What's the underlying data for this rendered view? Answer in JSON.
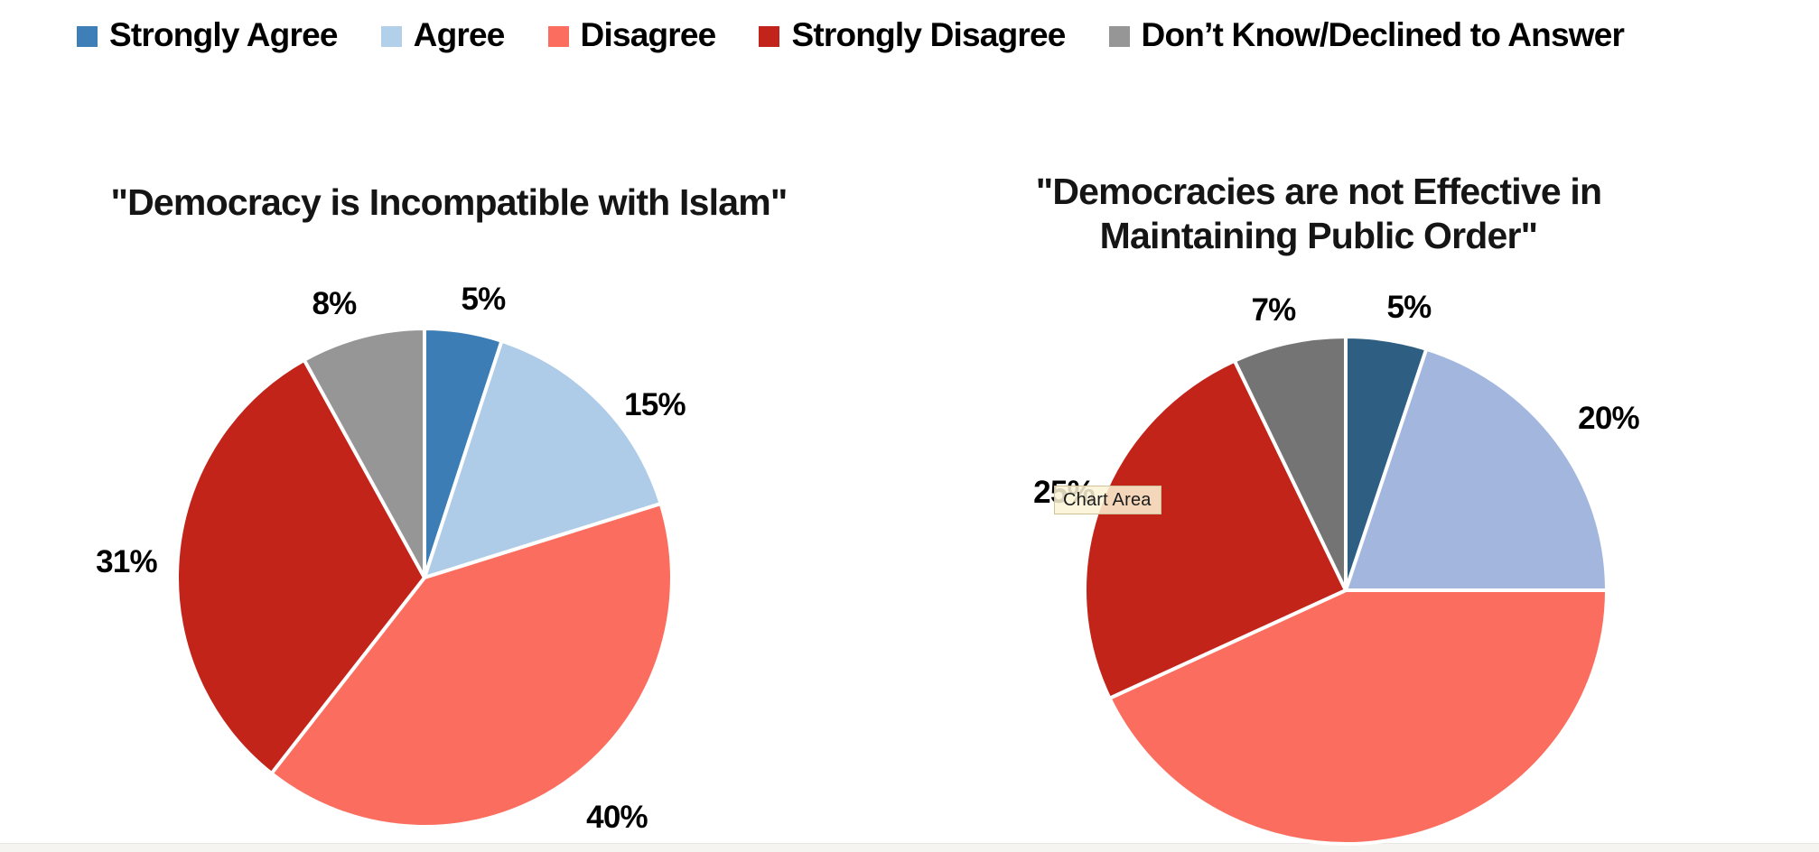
{
  "legend": {
    "items": [
      {
        "label": "Strongly Agree",
        "color": "#3f7fb8"
      },
      {
        "label": "Agree",
        "color": "#b3d0ea"
      },
      {
        "label": "Disagree",
        "color": "#fb6e5f"
      },
      {
        "label": "Strongly Disagree",
        "color": "#c2231a"
      },
      {
        "label": "Don’t Know/Declined to Answer",
        "color": "#969696"
      }
    ]
  },
  "chart_data": [
    {
      "type": "pie",
      "title": "\"Democracy is Incompatible with Islam\"",
      "categories": [
        "Strongly Agree",
        "Agree",
        "Disagree",
        "Strongly Disagree",
        "Don’t Know/Declined to Answer"
      ],
      "values": [
        5,
        15,
        40,
        31,
        8
      ],
      "labels": [
        "5%",
        "15%",
        "40%",
        "31%",
        "8%"
      ],
      "colors": [
        "#3c7db5",
        "#aecbe8",
        "#fb6e5f",
        "#c2241a",
        "#969696"
      ],
      "legend_position": "top",
      "start_angle_deg": 0,
      "direction": "clockwise"
    },
    {
      "type": "pie",
      "title": "\"Democracies are not Effective in Maintaining Public Order\"",
      "categories": [
        "Strongly Agree",
        "Agree",
        "Disagree",
        "Strongly Disagree",
        "Don’t Know/Declined to Answer"
      ],
      "values": [
        5,
        20,
        43,
        25,
        7
      ],
      "labels": [
        "5%",
        "20%",
        "",
        "25%",
        "7%"
      ],
      "colors": [
        "#2e5f82",
        "#a3b7de",
        "#fb6e5f",
        "#c2241a",
        "#747474"
      ],
      "legend_position": "top",
      "start_angle_deg": 0,
      "direction": "clockwise",
      "note_unlabeled_slice": "Disagree slice (43%) has no visible data label"
    }
  ],
  "display": {
    "right_title_lines": [
      "\"Democracies are not Effective in",
      "Maintaining Public Order\""
    ],
    "tooltip": "Chart Area"
  }
}
